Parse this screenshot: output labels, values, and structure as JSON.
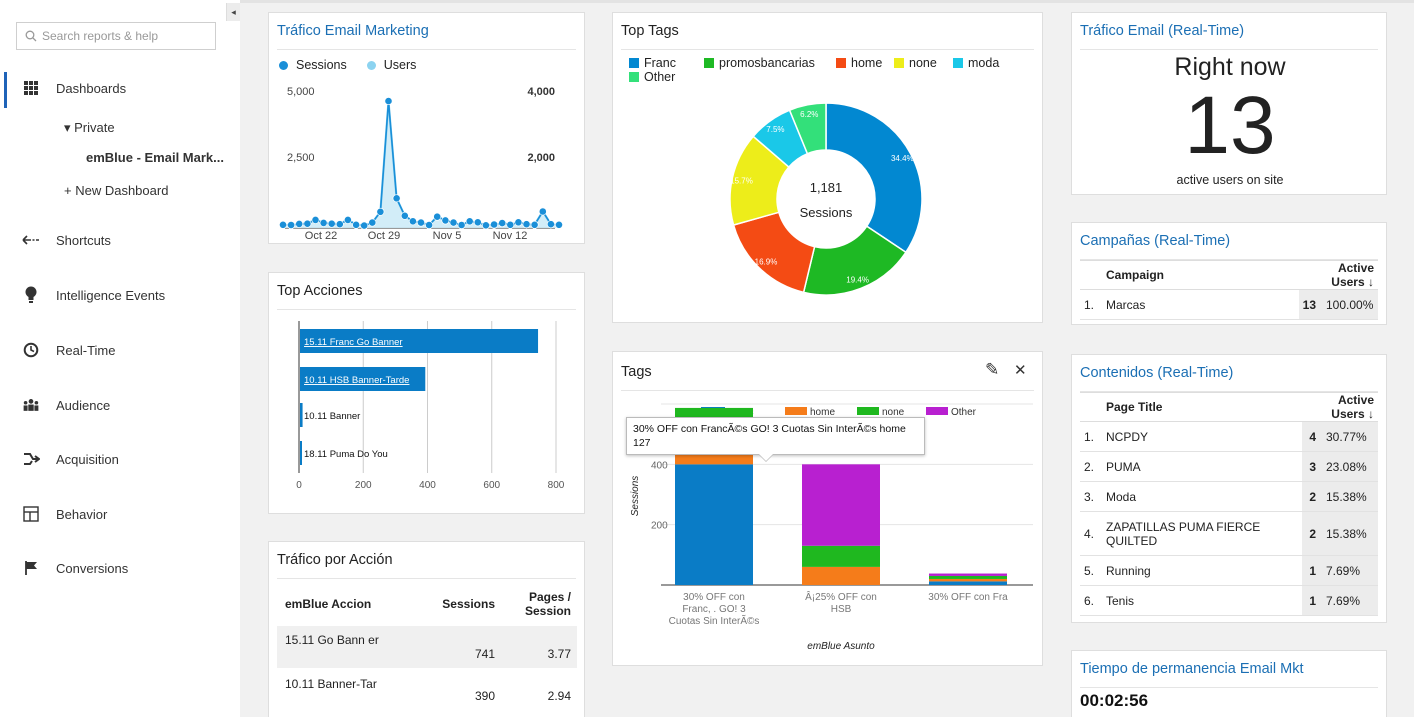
{
  "sidebar": {
    "search_placeholder": "Search reports & help",
    "collapse_glyph": "◂",
    "items": [
      {
        "label": "Dashboards",
        "icon": "dashboard-grid-icon"
      },
      {
        "label": "Shortcuts",
        "icon": "shortcut-arrow-icon"
      },
      {
        "label": "Intelligence Events",
        "icon": "lightbulb-icon"
      },
      {
        "label": "Real-Time",
        "icon": "clock-icon"
      },
      {
        "label": "Audience",
        "icon": "people-icon"
      },
      {
        "label": "Acquisition",
        "icon": "acquisition-arrow-icon"
      },
      {
        "label": "Behavior",
        "icon": "behavior-layout-icon"
      },
      {
        "label": "Conversions",
        "icon": "flag-icon"
      }
    ],
    "private_label": "▾ Private",
    "dashboard_name": "emBlue - Email Mark...",
    "new_dashboard": "+ New Dashboard"
  },
  "trafico_email": {
    "title": "Tráfico Email Marketing",
    "legend": [
      "Sessions",
      "Users"
    ],
    "colors": {
      "sessions": "#1a8fd8",
      "users": "#8cd3f0"
    },
    "y_left": [
      "5,000",
      "2,500"
    ],
    "y_right": [
      "4,000",
      "2,000"
    ],
    "x_labels": [
      "Oct 22",
      "Oct 29",
      "Nov 5",
      "Nov 12"
    ],
    "chart_data": {
      "type": "line",
      "ylim_left": [
        0,
        5000
      ],
      "ylim_right": [
        0,
        4000
      ],
      "series": [
        {
          "name": "Sessions",
          "values": [
            120,
            110,
            150,
            160,
            300,
            190,
            160,
            140,
            300,
            120,
            90,
            200,
            600,
            4700,
            1100,
            450,
            250,
            200,
            110,
            420,
            280,
            200,
            110,
            250,
            210,
            100,
            130,
            180,
            120,
            210,
            140,
            120,
            610,
            140,
            120
          ]
        },
        {
          "name": "Users",
          "values": [
            100,
            90,
            120,
            140,
            250,
            160,
            140,
            120,
            250,
            100,
            80,
            160,
            480,
            3750,
            880,
            360,
            200,
            160,
            90,
            340,
            220,
            160,
            90,
            200,
            170,
            80,
            100,
            140,
            100,
            170,
            110,
            100,
            490,
            110,
            100
          ]
        }
      ]
    }
  },
  "top_tags": {
    "title": "Top Tags",
    "legend": [
      {
        "label": "Franc",
        "color": "#0288d1"
      },
      {
        "label": "promosbancarias",
        "color": "#1eb924"
      },
      {
        "label": "home",
        "color": "#f44b14"
      },
      {
        "label": "none",
        "color": "#eded1a"
      },
      {
        "label": "moda",
        "color": "#1ac8e8"
      },
      {
        "label": "Other",
        "color": "#33e07a"
      }
    ],
    "center_value": "1,181",
    "center_label": "Sessions",
    "chart_data": {
      "type": "pie",
      "slices": [
        {
          "label": "Franc",
          "value": 34.4,
          "display": "34.4%"
        },
        {
          "label": "promosbancarias",
          "value": 19.4,
          "display": "19.4%"
        },
        {
          "label": "home",
          "value": 16.9,
          "display": "16.9%"
        },
        {
          "label": "none",
          "value": 15.7,
          "display": "15.7%"
        },
        {
          "label": "moda",
          "value": 7.5,
          "display": "7.5%"
        },
        {
          "label": "Other",
          "value": 6.2,
          "display": "6.2%"
        }
      ]
    }
  },
  "realtime_traffic": {
    "title": "Tráfico Email (Real-Time)",
    "right_now": "Right now",
    "value": "13",
    "caption": "active users on site"
  },
  "top_acciones": {
    "title": "Top Acciones",
    "bar_color": "#0a7cc6",
    "x_ticks": [
      "0",
      "200",
      "400",
      "600",
      "800"
    ],
    "chart_data": {
      "type": "bar",
      "orientation": "horizontal",
      "xlim": [
        0,
        800
      ],
      "categories": [
        "15.11 Franc Go Banner",
        "10.11 HSB Banner-Tarde",
        "10.11 Banner",
        "18.11 Puma Do You"
      ],
      "values": [
        741,
        390,
        8,
        4
      ]
    }
  },
  "campanas": {
    "title": "Campañas (Real-Time)",
    "headers": [
      "Campaign",
      "Active Users"
    ],
    "rows": [
      {
        "idx": "1.",
        "name": "Marcas",
        "count": "13",
        "pct": "100.00%"
      }
    ]
  },
  "contenidos": {
    "title": "Contenidos (Real-Time)",
    "headers": [
      "Page Title",
      "Active Users"
    ],
    "rows": [
      {
        "idx": "1.",
        "name": "NCPDY",
        "count": "4",
        "pct": "30.77%"
      },
      {
        "idx": "2.",
        "name": "PUMA",
        "count": "3",
        "pct": "23.08%"
      },
      {
        "idx": "3.",
        "name": "Moda",
        "count": "2",
        "pct": "15.38%"
      },
      {
        "idx": "4.",
        "name": "ZAPATILLAS PUMA FIERCE QUILTED",
        "count": "2",
        "pct": "15.38%"
      },
      {
        "idx": "5.",
        "name": "Running",
        "count": "1",
        "pct": "7.69%"
      },
      {
        "idx": "6.",
        "name": "Tenis",
        "count": "1",
        "pct": "7.69%"
      }
    ]
  },
  "tags": {
    "title": "Tags",
    "edit_glyph": "✎",
    "close_glyph": "✕",
    "legend": [
      {
        "label": "Franc",
        "color": "#0a7cc6"
      },
      {
        "label": "home",
        "color": "#f57c1a"
      },
      {
        "label": "none",
        "color": "#1fb81f"
      },
      {
        "label": "Other",
        "color": "#b820d0"
      }
    ],
    "y_axis_label": "Sessions",
    "y_ticks": [
      "400",
      "200"
    ],
    "x_axis_label": "emBlue Asunto",
    "x_labels": [
      [
        "30% OFF con",
        "Franc, . GO! 3",
        "Cuotas Sin InterÃ©s"
      ],
      [
        "Â¡25% OFF con",
        "HSB"
      ],
      [
        "30% OFF con Fra"
      ]
    ],
    "tooltip": [
      "30% OFF con FrancÃ©s GO! 3 Cuotas Sin InterÃ©s home",
      "127"
    ],
    "chart_data": {
      "type": "bar",
      "stacked": true,
      "ylim": [
        0,
        600
      ],
      "categories": [
        "30% OFF con FrancÃ©s GO! 3 Cuotas Sin InterÃ©s",
        "Â¡25% OFF con HSB",
        "30% OFF con Fra"
      ],
      "series": [
        {
          "name": "Franc",
          "values": [
            400,
            0,
            12
          ]
        },
        {
          "name": "home",
          "values": [
            127,
            60,
            8
          ]
        },
        {
          "name": "none",
          "values": [
            60,
            70,
            10
          ]
        },
        {
          "name": "Other",
          "values": [
            0,
            270,
            8
          ]
        }
      ]
    }
  },
  "trafico_accion": {
    "title": "Tráfico por Acción",
    "headers": [
      "emBlue Accion",
      "Sessions",
      "Pages / Session"
    ],
    "rows": [
      {
        "name": "15.11 Go Bann er",
        "sessions": "741",
        "pps": "3.77"
      },
      {
        "name": "10.11 Banner-Tar",
        "sessions": "390",
        "pps": "2.94"
      }
    ]
  },
  "tiempo": {
    "title": "Tiempo de permanencia Email Mkt",
    "value": "00:02:56"
  }
}
